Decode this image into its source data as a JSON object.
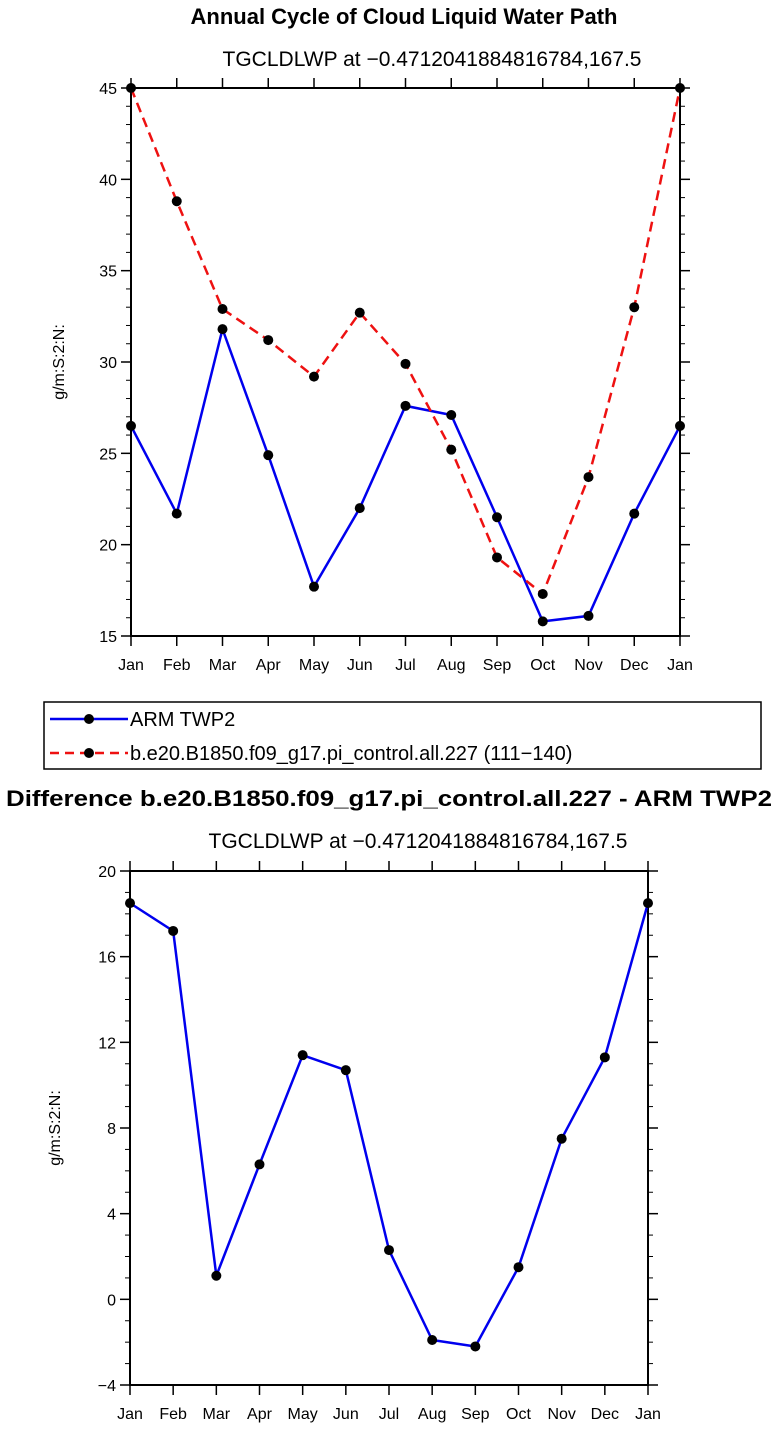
{
  "chart_data": [
    {
      "type": "line",
      "title": "Annual Cycle of Cloud Liquid Water Path",
      "subtitle": "TGCLDLWP at −0.4712041884816784,167.5",
      "ylabel": "g/m:S:2:N:",
      "xlabel": "",
      "ylim": [
        15,
        45
      ],
      "yticks": [
        15,
        20,
        25,
        30,
        35,
        40,
        45
      ],
      "categories": [
        "Jan",
        "Feb",
        "Mar",
        "Apr",
        "May",
        "Jun",
        "Jul",
        "Aug",
        "Sep",
        "Oct",
        "Nov",
        "Dec",
        "Jan"
      ],
      "series": [
        {
          "name": "ARM TWP2",
          "color": "#0000ee",
          "dash": "solid",
          "values": [
            26.5,
            21.7,
            31.8,
            24.9,
            17.7,
            22.0,
            27.6,
            27.1,
            21.5,
            15.8,
            16.1,
            21.7,
            26.5
          ]
        },
        {
          "name": "b.e20.B1850.f09_g17.pi_control.all.227 (111−140)",
          "color": "#ee1111",
          "dash": "dashed",
          "values": [
            45.0,
            38.8,
            32.9,
            31.2,
            29.2,
            32.7,
            29.9,
            25.2,
            19.3,
            17.3,
            23.7,
            33.0,
            45.0
          ]
        }
      ]
    },
    {
      "type": "line",
      "title": "Difference b.e20.B1850.f09_g17.pi_control.all.227 - ARM TWP2",
      "subtitle": "TGCLDLWP at −0.4712041884816784,167.5",
      "ylabel": "g/m:S:2:N:",
      "xlabel": "",
      "ylim": [
        -4,
        20
      ],
      "yticks": [
        -4,
        0,
        4,
        8,
        12,
        16,
        20
      ],
      "categories": [
        "Jan",
        "Feb",
        "Mar",
        "Apr",
        "May",
        "Jun",
        "Jul",
        "Aug",
        "Sep",
        "Oct",
        "Nov",
        "Dec",
        "Jan"
      ],
      "series": [
        {
          "name": "Difference",
          "color": "#0000ee",
          "dash": "solid",
          "values": [
            18.5,
            17.2,
            1.1,
            6.3,
            11.4,
            10.7,
            2.3,
            -1.9,
            -2.2,
            1.5,
            7.5,
            11.3,
            18.5
          ]
        }
      ]
    }
  ],
  "legend": {
    "entries": [
      {
        "label": "ARM TWP2",
        "color": "#0000ee",
        "dash": "solid"
      },
      {
        "label": "b.e20.B1850.f09_g17.pi_control.all.227 (111−140)",
        "color": "#ee1111",
        "dash": "dashed"
      }
    ]
  }
}
